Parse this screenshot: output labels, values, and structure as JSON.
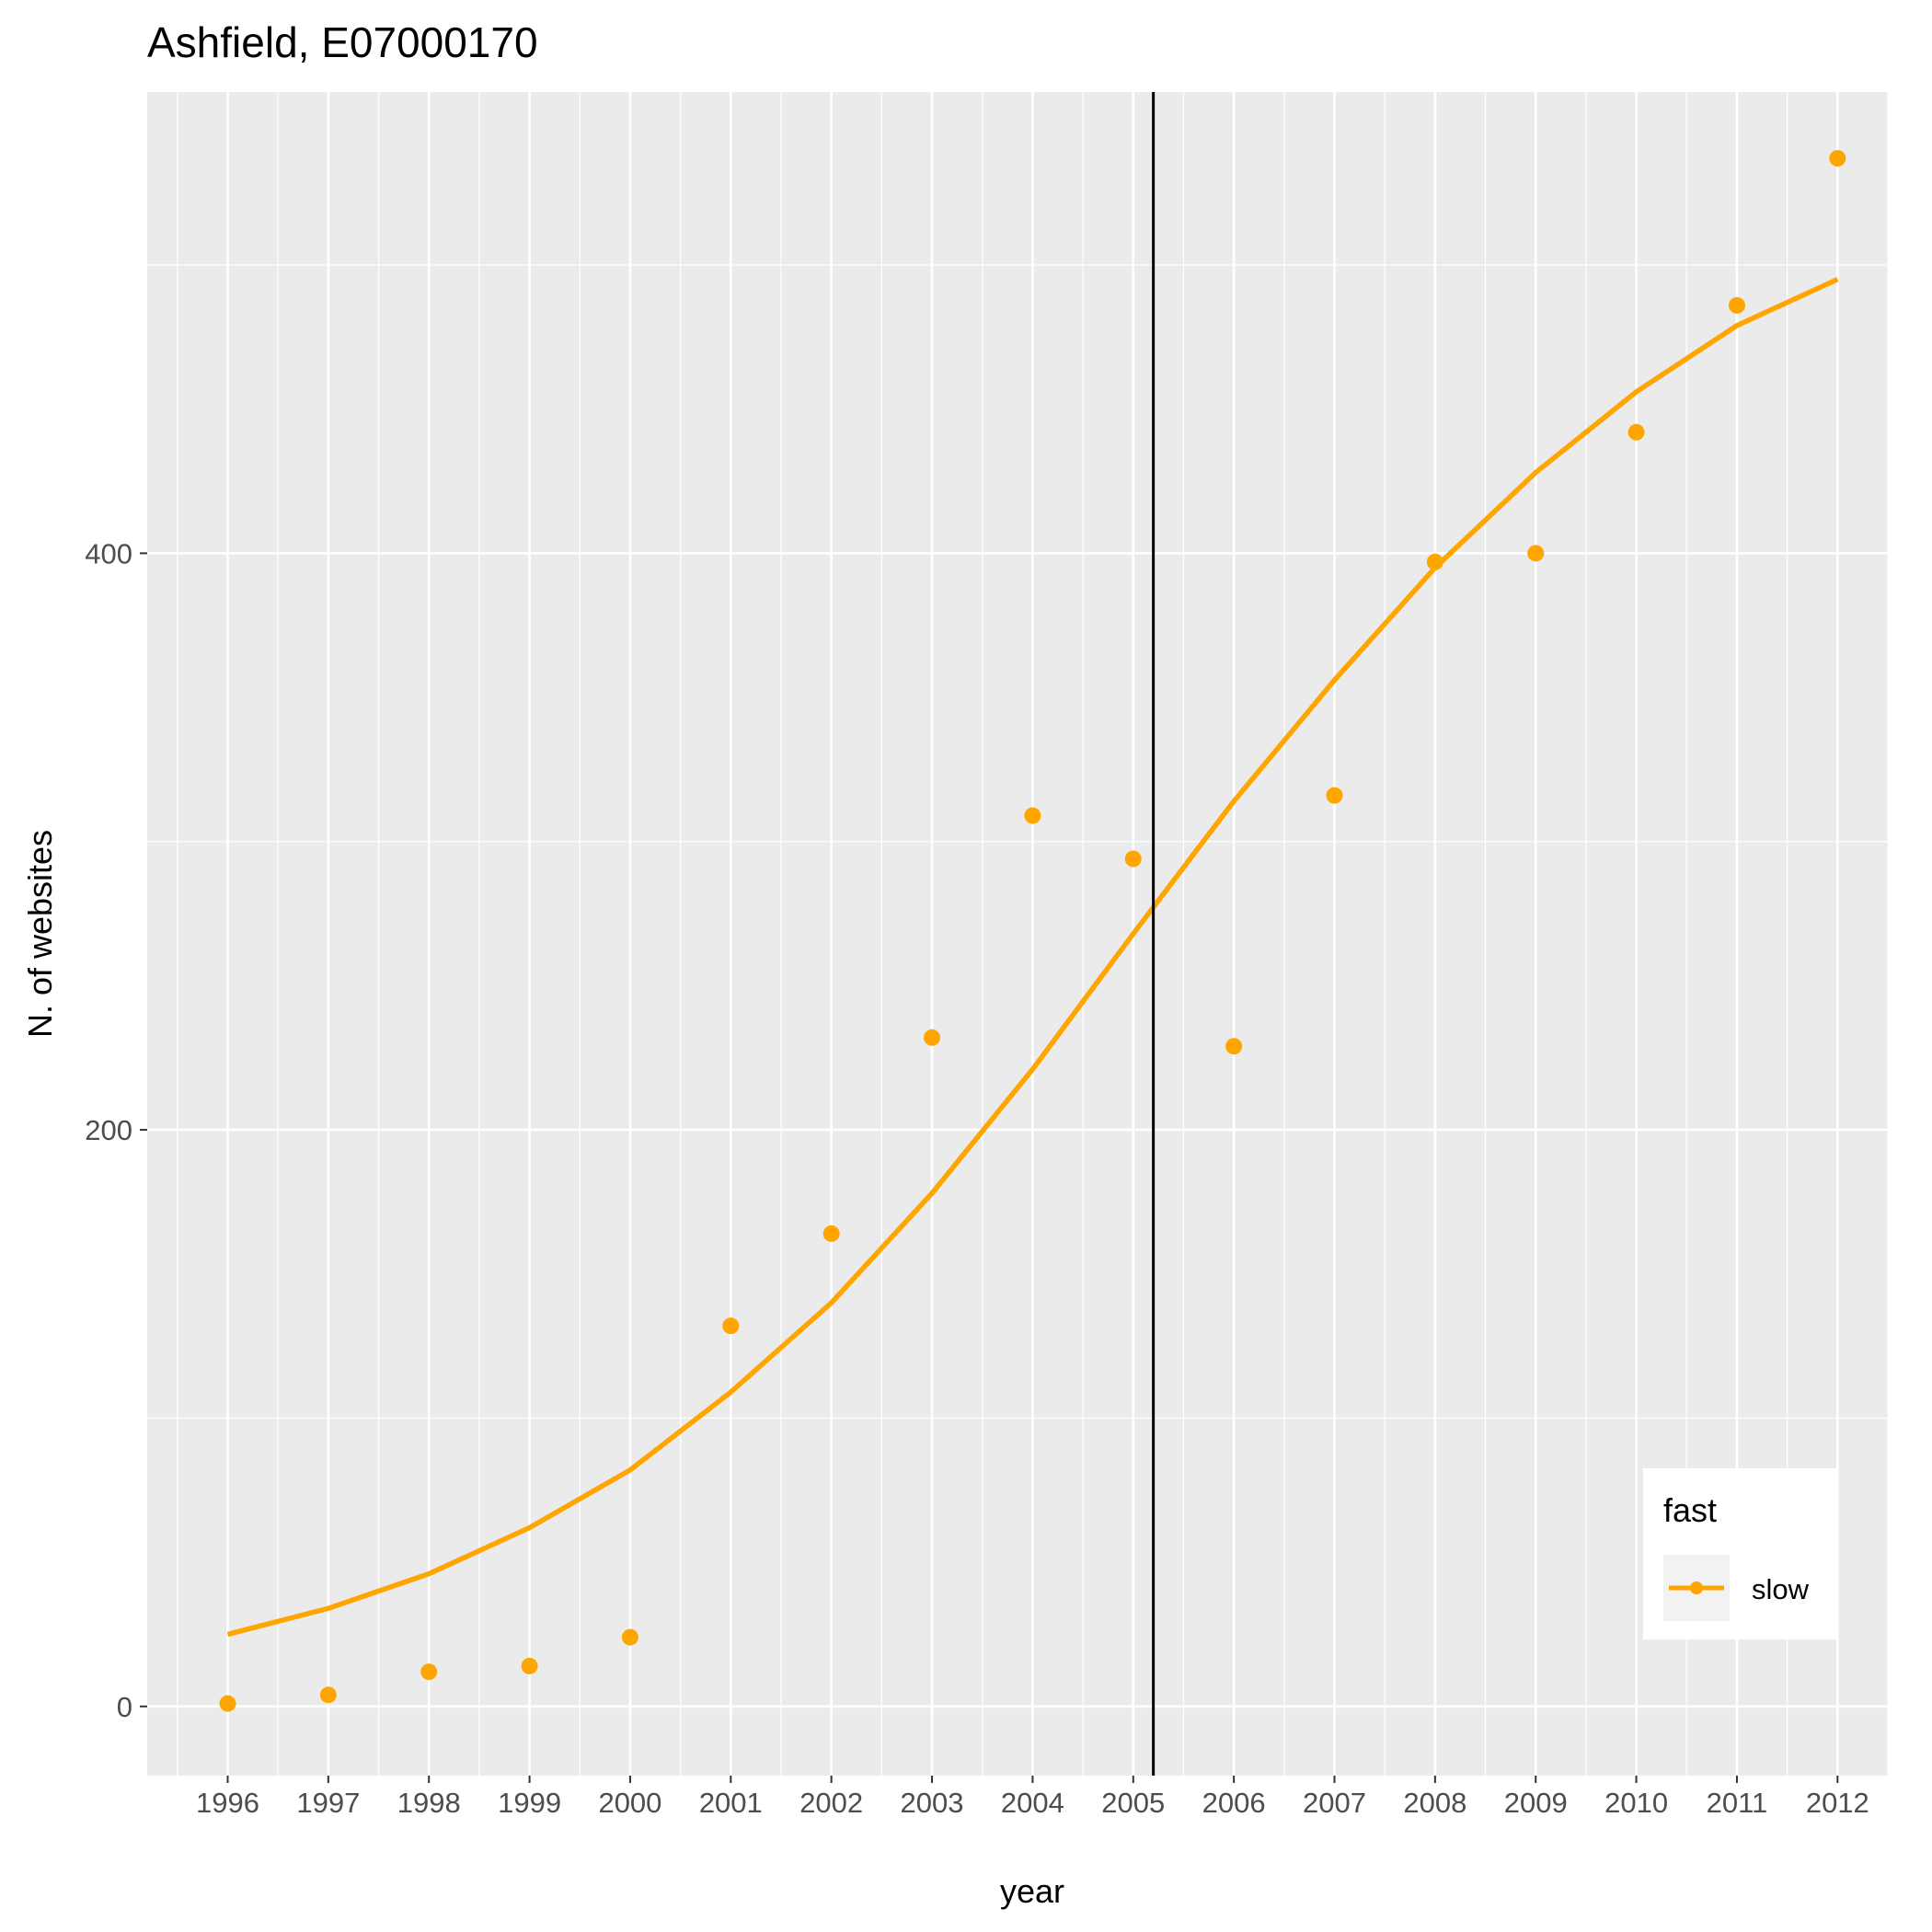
{
  "chart_data": {
    "type": "line",
    "title": "Ashfield, E07000170",
    "xlabel": "year",
    "ylabel": "N. of websites",
    "x": [
      1996,
      1997,
      1998,
      1999,
      2000,
      2001,
      2002,
      2003,
      2004,
      2005,
      2006,
      2007,
      2008,
      2009,
      2010,
      2011,
      2012
    ],
    "x_tick_labels": [
      "1996",
      "1997",
      "1998",
      "1999",
      "2000",
      "2001",
      "2002",
      "2003",
      "2004",
      "2005",
      "2006",
      "2007",
      "2008",
      "2009",
      "2010",
      "2011",
      "2012"
    ],
    "y_tick_values": [
      0,
      200,
      400
    ],
    "y_tick_labels": [
      "0",
      "200",
      "400"
    ],
    "xlim": [
      1995.2,
      2012.5
    ],
    "ylim": [
      -24,
      560
    ],
    "grid": true,
    "series": [
      {
        "name": "slow",
        "kind": "points",
        "color": "#FFA500",
        "values": [
          1,
          4,
          12,
          14,
          24,
          132,
          164,
          232,
          309,
          294,
          229,
          316,
          397,
          400,
          442,
          486,
          537
        ]
      },
      {
        "name": "slow",
        "kind": "trend",
        "color": "#FFA500",
        "values": [
          25,
          34,
          46,
          62,
          82,
          109,
          140,
          178,
          221,
          268,
          314,
          356,
          395,
          428,
          456,
          479,
          495
        ]
      }
    ],
    "vline": {
      "x": 2005.2,
      "color": "#000000"
    },
    "legend": {
      "title": "fast",
      "position": "bottom-right",
      "entries": [
        {
          "label": "slow",
          "color": "#FFA500"
        }
      ]
    }
  }
}
